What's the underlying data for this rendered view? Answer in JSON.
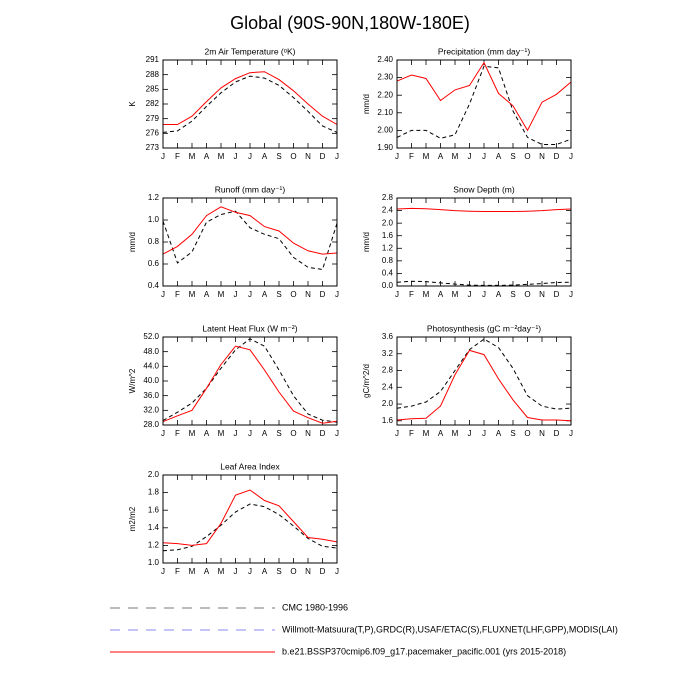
{
  "title": "Global (90S-90N,180W-180E)",
  "legend": [
    {
      "name": "CMC 1980-1996",
      "color": "#777777",
      "dash": true
    },
    {
      "name": "Willmott-Matsuura(T,P),GRDC(R),USAF/ETAC(S),FLUXNET(LHF,GPP),MODIS(LAI)",
      "color": "#8888ee",
      "dash": true
    },
    {
      "name": "b.e21.BSSP370cmip6.f09_g17.pacemaker_pacific.001 (yrs 2015-2018)",
      "color": "#ff0000",
      "dash": false
    }
  ],
  "chart_data": [
    {
      "type": "line",
      "title": "2m Air Temperature (ᵒK)",
      "y_label": "K",
      "categories": [
        "J",
        "F",
        "M",
        "A",
        "M",
        "J",
        "J",
        "A",
        "S",
        "O",
        "N",
        "D",
        "J"
      ],
      "ylim": [
        273,
        291
      ],
      "yticks": [
        273,
        276,
        279,
        282,
        285,
        288,
        291
      ],
      "series": [
        {
          "color": "#000000",
          "dash": true,
          "values": [
            276.2,
            276.5,
            278.5,
            281.5,
            284.3,
            286.5,
            287.7,
            287.3,
            285.8,
            283.3,
            280.5,
            277.5,
            276.2
          ]
        },
        {
          "color": "#ff0000",
          "dash": false,
          "values": [
            277.8,
            277.8,
            279.5,
            282.5,
            285.3,
            287.2,
            288.4,
            288.6,
            287,
            284.7,
            282,
            279.5,
            277.8
          ]
        }
      ]
    },
    {
      "type": "line",
      "title": "Precipitation (mm day⁻¹)",
      "y_label": "mm/d",
      "categories": [
        "J",
        "F",
        "M",
        "A",
        "M",
        "J",
        "J",
        "A",
        "S",
        "O",
        "N",
        "D",
        "J"
      ],
      "ylim": [
        1.9,
        2.4
      ],
      "yticks": [
        {
          "value": 1.9,
          "label": "1.90"
        },
        {
          "value": 2.0,
          "label": "2.00"
        },
        {
          "value": 2.1,
          "label": "2.10"
        },
        {
          "value": 2.2,
          "label": "2.20"
        },
        {
          "value": 2.3,
          "label": "2.30"
        },
        {
          "value": 2.4,
          "label": "2.40"
        }
      ],
      "series": [
        {
          "color": "#000000",
          "dash": true,
          "values": [
            1.96,
            2.0,
            2.0,
            1.955,
            1.975,
            2.15,
            2.365,
            2.355,
            2.11,
            1.96,
            1.92,
            1.92,
            1.95
          ]
        },
        {
          "color": "#ff0000",
          "dash": false,
          "values": [
            2.28,
            2.315,
            2.295,
            2.17,
            2.23,
            2.255,
            2.385,
            2.21,
            2.14,
            2.0,
            2.16,
            2.205,
            2.275
          ]
        }
      ]
    },
    {
      "type": "line",
      "title": "Runoff (mm day⁻¹)",
      "y_label": "mm/d",
      "categories": [
        "J",
        "F",
        "M",
        "A",
        "M",
        "J",
        "J",
        "A",
        "S",
        "O",
        "N",
        "D",
        "J"
      ],
      "ylim": [
        0.4,
        1.2
      ],
      "yticks": [
        0.4,
        0.6,
        0.8,
        {
          "value": 1.0,
          "label": "1.0"
        },
        1.2
      ],
      "series": [
        {
          "color": "#000000",
          "dash": true,
          "values": [
            0.99,
            0.61,
            0.71,
            0.98,
            1.05,
            1.08,
            0.93,
            0.87,
            0.83,
            0.66,
            0.57,
            0.55,
            0.97
          ]
        },
        {
          "color": "#ff0000",
          "dash": false,
          "values": [
            0.69,
            0.76,
            0.87,
            1.04,
            1.12,
            1.07,
            1.04,
            0.94,
            0.9,
            0.79,
            0.72,
            0.69,
            0.7
          ]
        }
      ]
    },
    {
      "type": "line",
      "title": "Snow Depth (m)",
      "y_label": "mm/d",
      "categories": [
        "J",
        "F",
        "M",
        "A",
        "M",
        "J",
        "J",
        "A",
        "S",
        "O",
        "N",
        "D",
        "J"
      ],
      "ylim": [
        0,
        2.8
      ],
      "yticks": [
        {
          "value": 0,
          "label": "0.0"
        },
        0.4,
        0.8,
        1.2,
        1.6,
        {
          "value": 2.0,
          "label": "2.0"
        },
        2.4,
        2.8
      ],
      "series": [
        {
          "color": "#000000",
          "dash": true,
          "values": [
            0.12,
            0.15,
            0.14,
            0.1,
            0.06,
            0.03,
            0.02,
            0.02,
            0.03,
            0.05,
            0.08,
            0.11,
            0.12
          ]
        },
        {
          "color": "#ff0000",
          "dash": false,
          "values": [
            2.45,
            2.47,
            2.46,
            2.43,
            2.4,
            2.38,
            2.37,
            2.37,
            2.37,
            2.38,
            2.4,
            2.43,
            2.45
          ]
        }
      ]
    },
    {
      "type": "line",
      "title": "Latent Heat Flux (W m⁻²)",
      "y_label": "W/m^2",
      "categories": [
        "J",
        "F",
        "M",
        "A",
        "M",
        "J",
        "J",
        "A",
        "S",
        "O",
        "N",
        "D",
        "J"
      ],
      "ylim": [
        28,
        52
      ],
      "yticks": [
        {
          "value": 28,
          "label": "28.0"
        },
        {
          "value": 32,
          "label": "32.0"
        },
        {
          "value": 36,
          "label": "36.0"
        },
        {
          "value": 40,
          "label": "40.0"
        },
        {
          "value": 44,
          "label": "44.0"
        },
        {
          "value": 48,
          "label": "48.0"
        },
        {
          "value": 52,
          "label": "52.0"
        }
      ],
      "series": [
        {
          "color": "#000000",
          "dash": true,
          "values": [
            29.2,
            31.5,
            34,
            38,
            43.5,
            48.5,
            51.5,
            49.5,
            43,
            36,
            31,
            29.3,
            28.8
          ]
        },
        {
          "color": "#ff0000",
          "dash": false,
          "values": [
            28.9,
            30.5,
            32,
            38,
            44.5,
            49.5,
            48.5,
            43,
            37,
            31.8,
            30,
            28.5,
            29
          ]
        }
      ]
    },
    {
      "type": "line",
      "title": "Photosynthesis (gC m⁻²day⁻¹)",
      "y_label": "gC/m^2/d",
      "categories": [
        "J",
        "F",
        "M",
        "A",
        "M",
        "J",
        "J",
        "A",
        "S",
        "O",
        "N",
        "D",
        "J"
      ],
      "ylim": [
        1.5,
        3.6
      ],
      "yticks": [
        1.6,
        {
          "value": 2.0,
          "label": "2.0"
        },
        2.4,
        2.8,
        3.2,
        3.6
      ],
      "series": [
        {
          "color": "#000000",
          "dash": true,
          "values": [
            1.9,
            1.95,
            2.05,
            2.3,
            2.8,
            3.3,
            3.55,
            3.35,
            2.85,
            2.2,
            1.95,
            1.88,
            1.9
          ]
        },
        {
          "color": "#ff0000",
          "dash": false,
          "values": [
            1.62,
            1.65,
            1.66,
            1.95,
            2.7,
            3.28,
            3.18,
            2.6,
            2.1,
            1.68,
            1.62,
            1.62,
            1.6
          ]
        }
      ]
    },
    {
      "type": "line",
      "title": "Leaf Area Index",
      "y_label": "m2/m2",
      "categories": [
        "J",
        "F",
        "M",
        "A",
        "M",
        "J",
        "J",
        "A",
        "S",
        "O",
        "N",
        "D",
        "J"
      ],
      "ylim": [
        1.0,
        2.0
      ],
      "yticks": [
        {
          "value": 1.0,
          "label": "1.0"
        },
        1.2,
        1.4,
        1.6,
        1.8,
        {
          "value": 2.0,
          "label": "2.0"
        }
      ],
      "series": [
        {
          "color": "#000000",
          "dash": true,
          "values": [
            1.14,
            1.15,
            1.19,
            1.3,
            1.43,
            1.58,
            1.67,
            1.64,
            1.55,
            1.42,
            1.28,
            1.19,
            1.17
          ]
        },
        {
          "color": "#ff0000",
          "dash": false,
          "values": [
            1.23,
            1.22,
            1.2,
            1.22,
            1.45,
            1.77,
            1.83,
            1.71,
            1.65,
            1.47,
            1.29,
            1.27,
            1.24
          ]
        }
      ]
    }
  ]
}
